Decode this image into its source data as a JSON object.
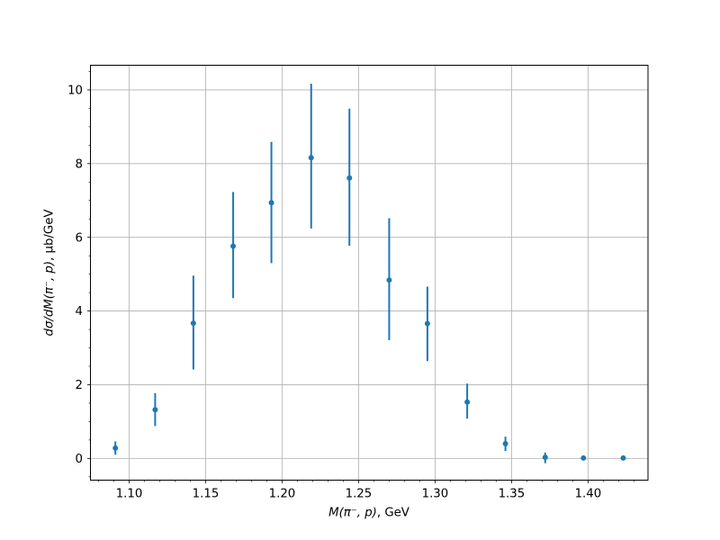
{
  "figure": {
    "background": "#ffffff",
    "xlabel": {
      "math": "M(π⁻, p)",
      "unit": ", GeV"
    },
    "ylabel": {
      "math": "dσ/dM(π⁻, p)",
      "unit": ", μb/GeV"
    }
  },
  "chart_data": {
    "type": "scatter",
    "subtype": "errorbar",
    "title": "",
    "xlabel": "M(π⁻, p), GeV",
    "ylabel": "dσ/dM(π⁻, p), μb/GeV",
    "marker_color": "#1f77b4",
    "grid": true,
    "grid_color": "#b0b0b0",
    "axis_color": "#000000",
    "legend": null,
    "xlim": [
      1.0747,
      1.4392
    ],
    "ylim": [
      -0.59,
      10.67
    ],
    "x_major_ticks": [
      1.1,
      1.15,
      1.2,
      1.25,
      1.3,
      1.35,
      1.4
    ],
    "x_tick_labels": [
      "1.10",
      "1.15",
      "1.20",
      "1.25",
      "1.30",
      "1.35",
      "1.40"
    ],
    "x_minor_step": 0.01,
    "y_major_ticks": [
      0,
      2,
      4,
      6,
      8,
      10
    ],
    "y_tick_labels": [
      "0",
      "2",
      "4",
      "6",
      "8",
      "10"
    ],
    "y_minor_step": 0.5,
    "points": [
      {
        "x": 1.091,
        "y": 0.28,
        "y_low": 0.1,
        "y_high": 0.46
      },
      {
        "x": 1.117,
        "y": 1.32,
        "y_low": 0.88,
        "y_high": 1.77
      },
      {
        "x": 1.142,
        "y": 3.67,
        "y_low": 2.41,
        "y_high": 4.96
      },
      {
        "x": 1.168,
        "y": 5.76,
        "y_low": 4.35,
        "y_high": 7.23
      },
      {
        "x": 1.193,
        "y": 6.94,
        "y_low": 5.3,
        "y_high": 8.59
      },
      {
        "x": 1.219,
        "y": 8.16,
        "y_low": 6.24,
        "y_high": 10.17
      },
      {
        "x": 1.244,
        "y": 7.61,
        "y_low": 5.77,
        "y_high": 9.49
      },
      {
        "x": 1.27,
        "y": 4.84,
        "y_low": 3.21,
        "y_high": 6.52
      },
      {
        "x": 1.295,
        "y": 3.66,
        "y_low": 2.64,
        "y_high": 4.66
      },
      {
        "x": 1.321,
        "y": 1.53,
        "y_low": 1.08,
        "y_high": 2.03
      },
      {
        "x": 1.346,
        "y": 0.4,
        "y_low": 0.2,
        "y_high": 0.59
      },
      {
        "x": 1.372,
        "y": 0.03,
        "y_low": -0.13,
        "y_high": 0.16
      },
      {
        "x": 1.397,
        "y": 0.01,
        "y_low": 0.01,
        "y_high": 0.01
      },
      {
        "x": 1.423,
        "y": 0.01,
        "y_low": 0.01,
        "y_high": 0.01
      }
    ]
  }
}
